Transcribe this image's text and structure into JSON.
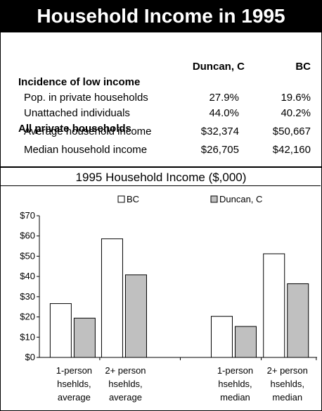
{
  "banner": {
    "title": "Household Income in 1995"
  },
  "table": {
    "col1": "Duncan, C",
    "col2": "BC",
    "sections": [
      {
        "heading": "Incidence of low income",
        "rows": [
          {
            "label": "Pop. in private households",
            "duncan": "27.9%",
            "bc": "19.6%"
          },
          {
            "label": "Unattached individuals",
            "duncan": "44.0%",
            "bc": "40.2%"
          }
        ]
      },
      {
        "heading": "All private households",
        "rows": [
          {
            "label": "Average household income",
            "duncan": "$32,374",
            "bc": "$50,667"
          },
          {
            "label": "Median household income",
            "duncan": "$26,705",
            "bc": "$42,160"
          }
        ]
      }
    ]
  },
  "chart_data": {
    "type": "bar",
    "title": "1995 Household Income ($,000)",
    "categories": [
      [
        "1-person",
        "hsehlds,",
        "average"
      ],
      [
        "2+ person",
        "hsehlds,",
        "average"
      ],
      [
        "1-person",
        "hsehlds,",
        "median"
      ],
      [
        "2+ person",
        "hsehlds,",
        "median"
      ]
    ],
    "series": [
      {
        "name": "BC",
        "color": "#ffffff",
        "values": [
          26.6,
          58.6,
          20.3,
          51.2
        ]
      },
      {
        "name": "Duncan, C",
        "color": "#c0c0c0",
        "values": [
          19.4,
          40.8,
          15.3,
          36.4
        ]
      }
    ],
    "ylim": [
      0,
      70
    ],
    "yticks": [
      "$0",
      "$10",
      "$20",
      "$30",
      "$40",
      "$50",
      "$60",
      "$70"
    ],
    "legend": "top",
    "grid": false
  }
}
